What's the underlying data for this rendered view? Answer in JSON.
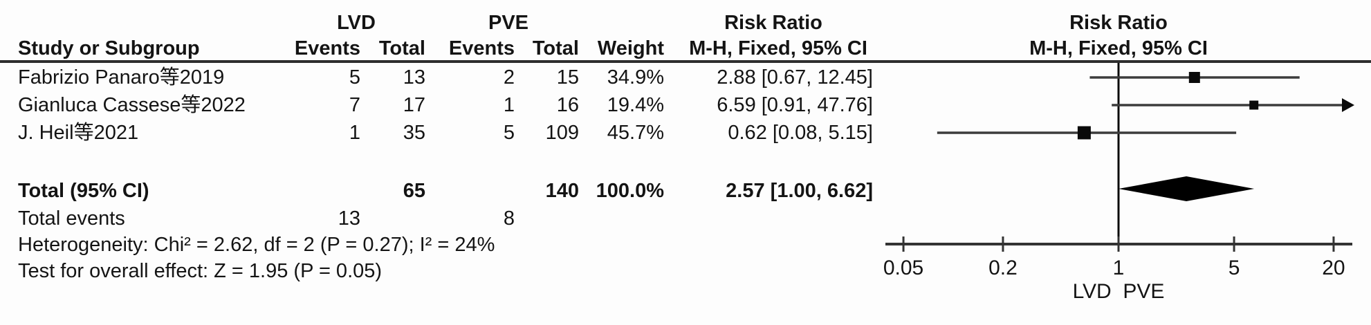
{
  "table": {
    "group1_label": "LVD",
    "group2_label": "PVE",
    "effect_label": "Risk Ratio",
    "method_label": "M-H, Fixed, 95% CI",
    "col_study": "Study or Subgroup",
    "col_events": "Events",
    "col_total": "Total",
    "col_weight": "Weight",
    "rows": [
      {
        "study": "Fabrizio Panaro等2019",
        "e1": "5",
        "t1": "13",
        "e2": "2",
        "t2": "15",
        "weight": "34.9%",
        "ci": "2.88 [0.67, 12.45]"
      },
      {
        "study": "Gianluca Cassese等2022",
        "e1": "7",
        "t1": "17",
        "e2": "1",
        "t2": "16",
        "weight": "19.4%",
        "ci": "6.59 [0.91, 47.76]"
      },
      {
        "study": "J. Heil等2021",
        "e1": "1",
        "t1": "35",
        "e2": "5",
        "t2": "109",
        "weight": "45.7%",
        "ci": "0.62 [0.08, 5.15]"
      }
    ],
    "total_row": {
      "label": "Total (95% CI)",
      "t1": "65",
      "t2": "140",
      "weight": "100.0%",
      "ci": "2.57 [1.00, 6.62]"
    },
    "total_events_row": {
      "label": "Total events",
      "e1": "13",
      "e2": "8"
    },
    "heterogeneity": "Heterogeneity: Chi² = 2.62, df = 2 (P = 0.27); I² = 24%",
    "overall_effect": "Test for overall effect: Z = 1.95 (P = 0.05)"
  },
  "chart_data": {
    "type": "forest",
    "x_scale": "log",
    "x_ticks": [
      0.05,
      0.2,
      1,
      5,
      20
    ],
    "x_range": [
      0.04,
      25
    ],
    "null_line": 1,
    "axis_side_label_left": "LVD",
    "axis_side_label_right": "PVE",
    "effect_measure": "Risk Ratio (M-H, Fixed, 95% CI)",
    "studies": [
      {
        "name": "Fabrizio Panaro等2019",
        "rr": 2.88,
        "ci_low": 0.67,
        "ci_high": 12.45,
        "weight_pct": 34.9
      },
      {
        "name": "Gianluca Cassese等2022",
        "rr": 6.59,
        "ci_low": 0.91,
        "ci_high": 47.76,
        "weight_pct": 19.4
      },
      {
        "name": "J. Heil等2021",
        "rr": 0.62,
        "ci_low": 0.08,
        "ci_high": 5.15,
        "weight_pct": 45.7
      }
    ],
    "overall": {
      "rr": 2.57,
      "ci_low": 1.0,
      "ci_high": 6.62
    },
    "colors": {
      "text": "#141414",
      "line": "#3c3c3c",
      "marker": "#0a0a0a",
      "diamond": "#000000"
    }
  }
}
